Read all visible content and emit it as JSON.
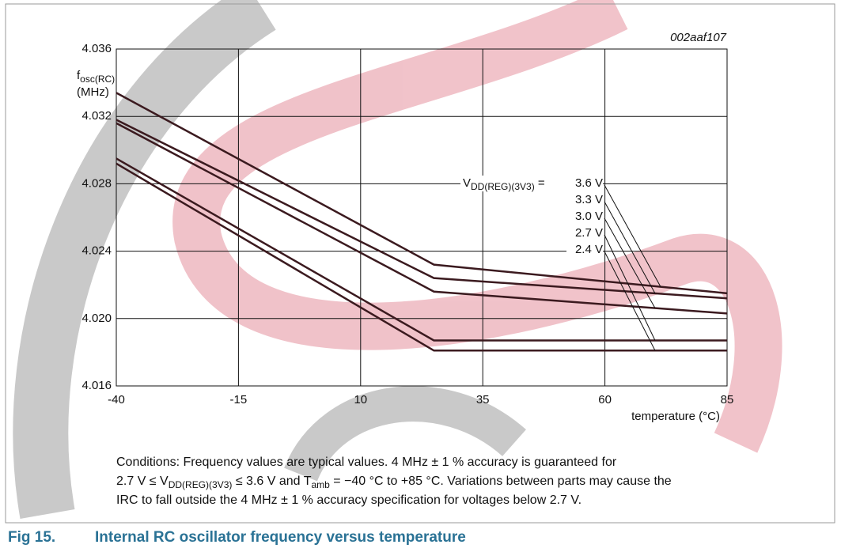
{
  "chart_data": {
    "type": "line",
    "figure_id": "002aaf107",
    "y_label": {
      "main": "f",
      "sub": "osc(RC)",
      "unit": "(MHz)"
    },
    "x_label": "temperature (°C)",
    "x": [
      -40,
      25,
      85
    ],
    "xlim": [
      -40,
      85
    ],
    "xticks": [
      -40,
      -15,
      10,
      35,
      60,
      85
    ],
    "ylim": [
      4.016,
      4.036
    ],
    "yticks": [
      4.016,
      {
        "value": 4.02,
        "label": "4.020"
      },
      4.024,
      4.028,
      4.032,
      4.036
    ],
    "grid": true,
    "legend_title": {
      "main": "V",
      "sub": "DD(REG)(3V3)",
      "tail": " = "
    },
    "series": [
      {
        "name": "3.6 V",
        "color": "#3b1a1f",
        "values": [
          4.0334,
          4.0232,
          4.0215
        ]
      },
      {
        "name": "3.3 V",
        "color": "#3b1a1f",
        "values": [
          4.0318,
          4.0224,
          4.0212
        ]
      },
      {
        "name": "3.0 V",
        "color": "#3b1a1f",
        "values": [
          4.0316,
          4.0216,
          4.0203
        ]
      },
      {
        "name": "2.7 V",
        "color": "#3b1a1f",
        "values": [
          4.0295,
          4.0187,
          4.0187
        ]
      },
      {
        "name": "2.4 V",
        "color": "#3b1a1f",
        "values": [
          4.0292,
          4.0181,
          4.0181
        ]
      }
    ],
    "conditions": [
      [
        "Conditions: Frequency values are typical values. 4 MHz ± 1 % accuracy is guaranteed for"
      ],
      [
        "2.7 V ≤ V",
        {
          "sub": "DD(REG)(3V3)"
        },
        " ≤ 3.6 V and T",
        {
          "sub": "amb"
        },
        " = −40 °C to +85 °C. Variations between parts may cause the"
      ],
      [
        "IRC to fall outside the 4 MHz ± 1 % accuracy specification for voltages below 2.7 V."
      ]
    ],
    "caption": {
      "number": "Fig 15.",
      "text": "Internal RC oscillator frequency versus temperature"
    }
  }
}
